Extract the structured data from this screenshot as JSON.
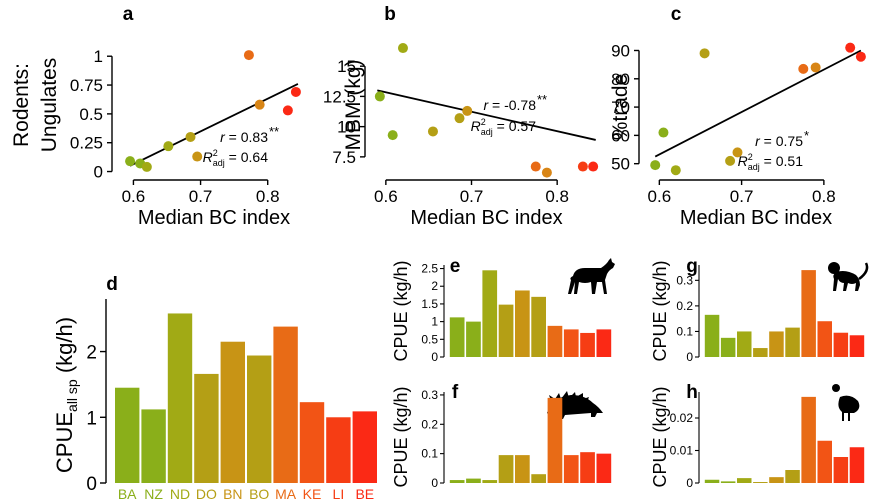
{
  "colors": {
    "A": "#8aaf1a",
    "B": "#a1aa15",
    "C": "#b49f15",
    "D": "#c89415",
    "E": "#d88516",
    "F": "#e86b16",
    "G": "#f25415",
    "H": "#f63d14",
    "I": "#fb2915"
  },
  "chart_data": [
    {
      "id": "a",
      "type": "scatter",
      "letter": "a",
      "ylabel_line1": "Rodents:",
      "ylabel_line2": "Ungulates",
      "xlabel": "Median BC index",
      "xlim": [
        0.58,
        0.86
      ],
      "ylim": [
        -0.03,
        1.08
      ],
      "xticks": [
        0.6,
        0.7,
        0.8
      ],
      "xticklabels": [
        "0.6",
        "0.7",
        "0.8"
      ],
      "yticks": [
        0,
        0.25,
        0.5,
        0.75,
        1
      ],
      "yticklabels": [
        "0",
        "0.25",
        "0.5",
        "0.75",
        "1"
      ],
      "points": [
        {
          "x": 0.595,
          "y": 0.09,
          "c": "A"
        },
        {
          "x": 0.61,
          "y": 0.07,
          "c": "A"
        },
        {
          "x": 0.62,
          "y": 0.04,
          "c": "B"
        },
        {
          "x": 0.652,
          "y": 0.22,
          "c": "B"
        },
        {
          "x": 0.685,
          "y": 0.3,
          "c": "C"
        },
        {
          "x": 0.695,
          "y": 0.13,
          "c": "D"
        },
        {
          "x": 0.772,
          "y": 1.01,
          "c": "F"
        },
        {
          "x": 0.788,
          "y": 0.58,
          "c": "E"
        },
        {
          "x": 0.83,
          "y": 0.53,
          "c": "I"
        },
        {
          "x": 0.842,
          "y": 0.69,
          "c": "I"
        }
      ],
      "fit": [
        [
          0.595,
          0.05
        ],
        [
          0.845,
          0.76
        ]
      ],
      "stat_r_label": "r",
      "stat_r_value": " = 0.83",
      "stat_r_sig": "**",
      "stat_r2_label": "R",
      "stat_r2_sup": "2",
      "stat_r2_sub": "adj",
      "stat_r2_value": " = 0.64"
    },
    {
      "id": "b",
      "type": "scatter",
      "letter": "b",
      "ylabel_line1": "MBM (kg)",
      "ylabel_line2": "",
      "xlabel": "Median BC index",
      "xlim": [
        0.585,
        0.85
      ],
      "ylim": [
        6.0,
        17.0
      ],
      "xticks": [
        0.6,
        0.7,
        0.8
      ],
      "xticklabels": [
        "0.6",
        "0.7",
        "0.8"
      ],
      "yticks": [
        7.5,
        10,
        12.5,
        15
      ],
      "yticklabels": [
        "7.5",
        "10",
        "12.5",
        "15"
      ],
      "points": [
        {
          "x": 0.593,
          "y": 12.5,
          "c": "A"
        },
        {
          "x": 0.608,
          "y": 9.3,
          "c": "A"
        },
        {
          "x": 0.62,
          "y": 16.5,
          "c": "B"
        },
        {
          "x": 0.655,
          "y": 9.6,
          "c": "C"
        },
        {
          "x": 0.686,
          "y": 10.7,
          "c": "C"
        },
        {
          "x": 0.695,
          "y": 11.3,
          "c": "D"
        },
        {
          "x": 0.775,
          "y": 6.7,
          "c": "F"
        },
        {
          "x": 0.788,
          "y": 6.2,
          "c": "E"
        },
        {
          "x": 0.83,
          "y": 6.7,
          "c": "H"
        },
        {
          "x": 0.842,
          "y": 6.7,
          "c": "I"
        }
      ],
      "fit": [
        [
          0.59,
          13.0
        ],
        [
          0.845,
          8.9
        ]
      ],
      "stat_r_label": "r",
      "stat_r_value": " = -0.78",
      "stat_r_sig": "**",
      "stat_r2_label": "R",
      "stat_r2_sup": "2",
      "stat_r2_sub": "adj",
      "stat_r2_value": " = 0.57"
    },
    {
      "id": "c",
      "type": "scatter",
      "letter": "c",
      "ylabel_line1": "%trade",
      "ylabel_line2": "",
      "xlabel": "Median BC index",
      "xlim": [
        0.585,
        0.85
      ],
      "ylim": [
        46,
        93
      ],
      "xticks": [
        0.6,
        0.7,
        0.8
      ],
      "xticklabels": [
        "0.6",
        "0.7",
        "0.8"
      ],
      "yticks": [
        50,
        60,
        70,
        80,
        90
      ],
      "yticklabels": [
        "50",
        "60",
        "70",
        "80",
        "90"
      ],
      "points": [
        {
          "x": 0.595,
          "y": 49.5,
          "c": "A"
        },
        {
          "x": 0.605,
          "y": 61,
          "c": "A"
        },
        {
          "x": 0.62,
          "y": 47.7,
          "c": "B"
        },
        {
          "x": 0.655,
          "y": 89,
          "c": "C"
        },
        {
          "x": 0.686,
          "y": 51,
          "c": "C"
        },
        {
          "x": 0.695,
          "y": 54,
          "c": "D"
        },
        {
          "x": 0.775,
          "y": 83.5,
          "c": "F"
        },
        {
          "x": 0.79,
          "y": 84,
          "c": "E"
        },
        {
          "x": 0.832,
          "y": 91,
          "c": "I"
        },
        {
          "x": 0.845,
          "y": 87.8,
          "c": "I"
        }
      ],
      "fit": [
        [
          0.595,
          52.5
        ],
        [
          0.845,
          90
        ]
      ],
      "stat_r_label": "r",
      "stat_r_value": " = 0.75",
      "stat_r_sig": "*",
      "stat_r2_label": "R",
      "stat_r2_sup": "2",
      "stat_r2_sub": "adj",
      "stat_r2_value": " = 0.51"
    },
    {
      "id": "d",
      "type": "bar",
      "letter": "d",
      "ylabel_main": "CPUE",
      "ylabel_sub": "all sp",
      "ylabel_tail": " (kg/h)",
      "ylim": [
        0,
        2.8
      ],
      "yticks": [
        0,
        1,
        2
      ],
      "yticklabels": [
        "0",
        "1",
        "2"
      ],
      "categories": [
        "BA",
        "NZ",
        "ND",
        "DO",
        "BN",
        "BO",
        "MA",
        "KE",
        "LI",
        "BE"
      ],
      "values": [
        1.45,
        1.12,
        2.58,
        1.66,
        2.15,
        1.94,
        2.38,
        1.23,
        1.0,
        1.09
      ],
      "colors": [
        "A",
        "A",
        "B",
        "C",
        "D",
        "C",
        "F",
        "G",
        "H",
        "I"
      ]
    },
    {
      "id": "e",
      "type": "bar",
      "letter": "e",
      "ylabel": "CPUE (kg/h)",
      "ylim": [
        0,
        2.6
      ],
      "yticks": [
        0,
        0.5,
        1,
        1.5,
        2,
        2.5
      ],
      "yticklabels": [
        "0",
        "0.5",
        "1",
        "1.5",
        "2",
        "2.5"
      ],
      "values": [
        1.12,
        1.0,
        2.45,
        1.48,
        1.88,
        1.7,
        0.88,
        0.78,
        0.68,
        0.78
      ],
      "colors": [
        "A",
        "A",
        "B",
        "C",
        "D",
        "C",
        "F",
        "G",
        "H",
        "I"
      ]
    },
    {
      "id": "f",
      "type": "bar",
      "letter": "f",
      "ylabel": "CPUE (kg/h)",
      "ylim": [
        0,
        0.31
      ],
      "yticks": [
        0,
        0.1,
        0.2,
        0.3
      ],
      "yticklabels": [
        "0",
        "0.1",
        "0.2",
        "0.3"
      ],
      "values": [
        0.01,
        0.015,
        0.01,
        0.095,
        0.095,
        0.03,
        0.29,
        0.095,
        0.105,
        0.1
      ],
      "colors": [
        "A",
        "A",
        "B",
        "C",
        "D",
        "C",
        "F",
        "G",
        "H",
        "I"
      ]
    },
    {
      "id": "g",
      "type": "bar",
      "letter": "g",
      "ylabel": "CPUE (kg/h)",
      "ylim": [
        0,
        0.36
      ],
      "yticks": [
        0,
        0.1,
        0.2,
        0.3
      ],
      "yticklabels": [
        "0",
        "0.1",
        "0.2",
        "0.3"
      ],
      "values": [
        0.165,
        0.075,
        0.1,
        0.035,
        0.1,
        0.115,
        0.34,
        0.14,
        0.095,
        0.085
      ],
      "colors": [
        "A",
        "A",
        "B",
        "C",
        "D",
        "C",
        "F",
        "G",
        "H",
        "I"
      ]
    },
    {
      "id": "h",
      "type": "bar",
      "letter": "h",
      "ylabel": "CPUE (kg/h)",
      "ylim": [
        0,
        0.028
      ],
      "yticks": [
        0,
        0.01,
        0.02
      ],
      "yticklabels": [
        "0",
        "0.01",
        "0.02"
      ],
      "values": [
        0.001,
        0.0005,
        0.0015,
        0.0003,
        0.0018,
        0.004,
        0.0265,
        0.013,
        0.008,
        0.011
      ],
      "colors": [
        "A",
        "A",
        "B",
        "C",
        "D",
        "C",
        "F",
        "G",
        "H",
        "I"
      ]
    }
  ],
  "icons": {
    "e": "duiker-silhouette-icon",
    "f": "pangolin-silhouette-icon",
    "g": "monkey-silhouette-icon",
    "h": "guineafowl-silhouette-icon"
  }
}
